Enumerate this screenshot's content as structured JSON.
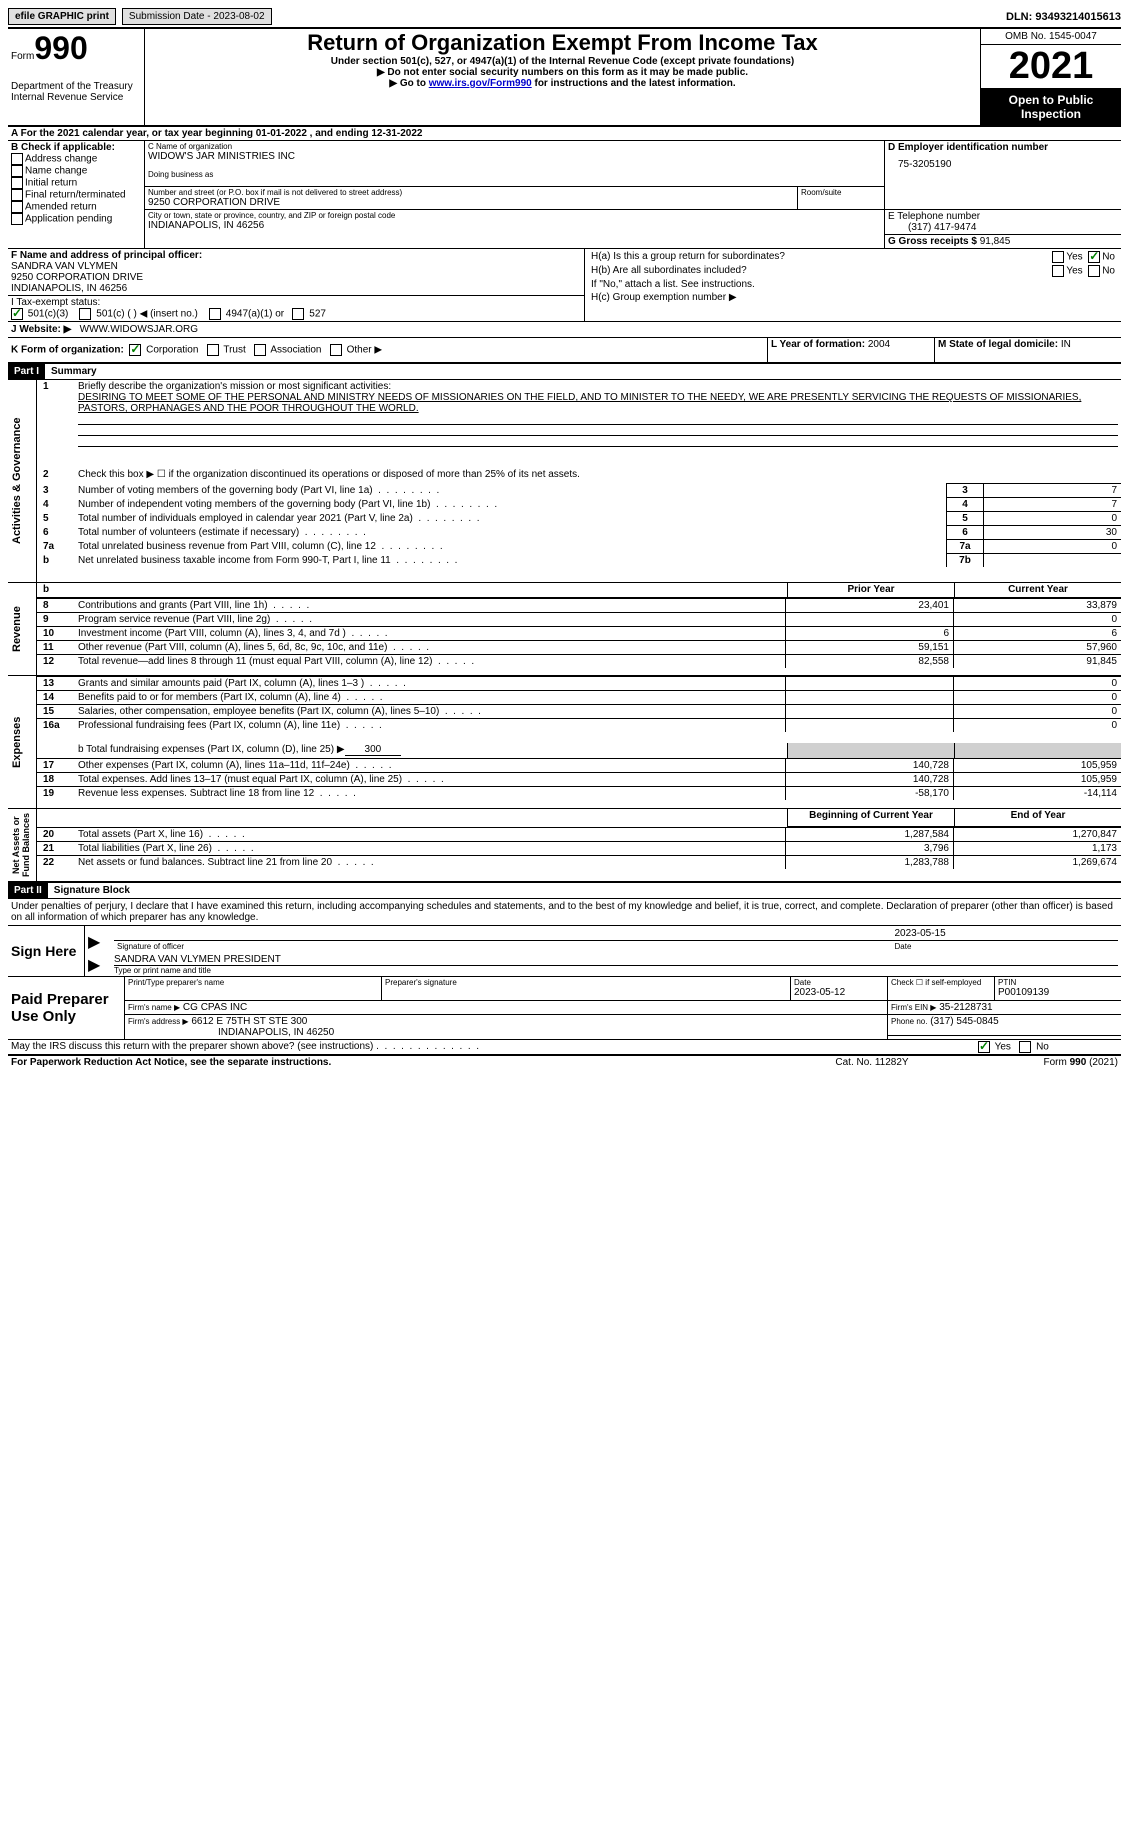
{
  "topbar": {
    "efile": "efile GRAPHIC print",
    "submission": "Submission Date - 2023-08-02",
    "dln": "DLN: 93493214015613"
  },
  "header": {
    "form_word": "Form",
    "form_num": "990",
    "title": "Return of Organization Exempt From Income Tax",
    "subtitle1": "Under section 501(c), 527, or 4947(a)(1) of the Internal Revenue Code (except private foundations)",
    "subtitle2": "▶ Do not enter social security numbers on this form as it may be made public.",
    "subtitle3_pre": "▶ Go to ",
    "subtitle3_link": "www.irs.gov/Form990",
    "subtitle3_post": " for instructions and the latest information.",
    "dept": "Department of the Treasury",
    "irs": "Internal Revenue Service",
    "omb": "OMB No. 1545-0047",
    "year": "2021",
    "open": "Open to Public Inspection"
  },
  "line_a": {
    "text_pre": "A For the 2021 calendar year, or tax year beginning ",
    "begin": "01-01-2022",
    "mid": "   , and ending ",
    "end": "12-31-2022"
  },
  "section_b": {
    "label": "B Check if applicable:",
    "opts": [
      "Address change",
      "Name change",
      "Initial return",
      "Final return/terminated",
      "Amended return",
      "Application pending"
    ]
  },
  "section_c": {
    "name_label": "C Name of organization",
    "name": "WIDOW'S JAR MINISTRIES INC",
    "dba_label": "Doing business as",
    "addr_label": "Number and street (or P.O. box if mail is not delivered to street address)",
    "room_label": "Room/suite",
    "addr": "9250 CORPORATION DRIVE",
    "city_label": "City or town, state or province, country, and ZIP or foreign postal code",
    "city": "INDIANAPOLIS, IN  46256"
  },
  "section_d": {
    "label": "D Employer identification number",
    "value": "75-3205190"
  },
  "section_e": {
    "label": "E Telephone number",
    "value": "(317) 417-9474"
  },
  "section_g": {
    "label": "G Gross receipts $",
    "value": "91,845"
  },
  "section_f": {
    "label": "F Name and address of principal officer:",
    "name": "SANDRA VAN VLYMEN",
    "addr1": "9250 CORPORATION DRIVE",
    "addr2": "INDIANAPOLIS, IN  46256"
  },
  "section_h": {
    "ha": "H(a)  Is this a group return for subordinates?",
    "hb": "H(b)  Are all subordinates included?",
    "hb_note": "If \"No,\" attach a list. See instructions.",
    "hc": "H(c)  Group exemption number ▶",
    "yes": "Yes",
    "no": "No"
  },
  "section_i": {
    "label": "I    Tax-exempt status:",
    "o1": "501(c)(3)",
    "o2": "501(c) (  ) ◀ (insert no.)",
    "o3": "4947(a)(1) or",
    "o4": "527"
  },
  "section_j": {
    "label": "J    Website: ▶",
    "value": "WWW.WIDOWSJAR.ORG"
  },
  "section_k": {
    "label": "K Form of organization:",
    "o1": "Corporation",
    "o2": "Trust",
    "o3": "Association",
    "o4": "Other ▶"
  },
  "section_l": {
    "label": "L Year of formation:",
    "value": "2004"
  },
  "section_m": {
    "label": "M State of legal domicile:",
    "value": "IN"
  },
  "part1": {
    "num": "Part I",
    "title": "Summary",
    "q1_label": "1",
    "q1_text": "Briefly describe the organization's mission or most significant activities:",
    "q1_body": "DESIRING TO MEET SOME OF THE PERSONAL AND MINISTRY NEEDS OF MISSIONARIES ON THE FIELD, AND TO MINISTER TO THE NEEDY, WE ARE PRESENTLY SERVICING THE REQUESTS OF MISSIONARIES, PASTORS, ORPHANAGES AND THE POOR THROUGHOUT THE WORLD.",
    "q2": "Check this box ▶ ☐  if the organization discontinued its operations or disposed of more than 25% of its net assets.",
    "rows_gov": [
      {
        "n": "3",
        "t": "Number of voting members of the governing body (Part VI, line 1a)",
        "box": "3",
        "v": "7"
      },
      {
        "n": "4",
        "t": "Number of independent voting members of the governing body (Part VI, line 1b)",
        "box": "4",
        "v": "7"
      },
      {
        "n": "5",
        "t": "Total number of individuals employed in calendar year 2021 (Part V, line 2a)",
        "box": "5",
        "v": "0"
      },
      {
        "n": "6",
        "t": "Total number of volunteers (estimate if necessary)",
        "box": "6",
        "v": "30"
      },
      {
        "n": "7a",
        "t": "Total unrelated business revenue from Part VIII, column (C), line 12",
        "box": "7a",
        "v": "0"
      },
      {
        "n": "b",
        "t": "Net unrelated business taxable income from Form 990-T, Part I, line 11",
        "box": "7b",
        "v": ""
      }
    ],
    "col_prior": "Prior Year",
    "col_current": "Current Year",
    "revenue": [
      {
        "n": "8",
        "t": "Contributions and grants (Part VIII, line 1h)",
        "p": "23,401",
        "c": "33,879"
      },
      {
        "n": "9",
        "t": "Program service revenue (Part VIII, line 2g)",
        "p": "",
        "c": "0"
      },
      {
        "n": "10",
        "t": "Investment income (Part VIII, column (A), lines 3, 4, and 7d )",
        "p": "6",
        "c": "6"
      },
      {
        "n": "11",
        "t": "Other revenue (Part VIII, column (A), lines 5, 6d, 8c, 9c, 10c, and 11e)",
        "p": "59,151",
        "c": "57,960"
      },
      {
        "n": "12",
        "t": "Total revenue—add lines 8 through 11 (must equal Part VIII, column (A), line 12)",
        "p": "82,558",
        "c": "91,845"
      }
    ],
    "expenses": [
      {
        "n": "13",
        "t": "Grants and similar amounts paid (Part IX, column (A), lines 1–3 )",
        "p": "",
        "c": "0"
      },
      {
        "n": "14",
        "t": "Benefits paid to or for members (Part IX, column (A), line 4)",
        "p": "",
        "c": "0"
      },
      {
        "n": "15",
        "t": "Salaries, other compensation, employee benefits (Part IX, column (A), lines 5–10)",
        "p": "",
        "c": "0"
      },
      {
        "n": "16a",
        "t": "Professional fundraising fees (Part IX, column (A), line 11e)",
        "p": "",
        "c": "0"
      }
    ],
    "line_b": "b  Total fundraising expenses (Part IX, column (D), line 25) ▶",
    "line_b_val": "300",
    "expenses2": [
      {
        "n": "17",
        "t": "Other expenses (Part IX, column (A), lines 11a–11d, 11f–24e)",
        "p": "140,728",
        "c": "105,959"
      },
      {
        "n": "18",
        "t": "Total expenses. Add lines 13–17 (must equal Part IX, column (A), line 25)",
        "p": "140,728",
        "c": "105,959"
      },
      {
        "n": "19",
        "t": "Revenue less expenses. Subtract line 18 from line 12",
        "p": "-58,170",
        "c": "-14,114"
      }
    ],
    "col_begin": "Beginning of Current Year",
    "col_end": "End of Year",
    "net": [
      {
        "n": "20",
        "t": "Total assets (Part X, line 16)",
        "p": "1,287,584",
        "c": "1,270,847"
      },
      {
        "n": "21",
        "t": "Total liabilities (Part X, line 26)",
        "p": "3,796",
        "c": "1,173"
      },
      {
        "n": "22",
        "t": "Net assets or fund balances. Subtract line 21 from line 20",
        "p": "1,283,788",
        "c": "1,269,674"
      }
    ],
    "vlabels": {
      "gov": "Activities & Governance",
      "rev": "Revenue",
      "exp": "Expenses",
      "net": "Net Assets or Fund Balances"
    }
  },
  "part2": {
    "num": "Part II",
    "title": "Signature Block",
    "perjury": "Under penalties of perjury, I declare that I have examined this return, including accompanying schedules and statements, and to the best of my knowledge and belief, it is true, correct, and complete. Declaration of preparer (other than officer) is based on all information of which preparer has any knowledge.",
    "sign_here": "Sign Here",
    "sig_officer": "Signature of officer",
    "sig_date": "2023-05-15",
    "date_label": "Date",
    "typed_name": "SANDRA VAN VLYMEN  PRESIDENT",
    "typed_label": "Type or print name and title",
    "paid": "Paid Preparer Use Only",
    "print_name_label": "Print/Type preparer's name",
    "prep_sig_label": "Preparer's signature",
    "prep_date_label": "Date",
    "prep_date": "2023-05-12",
    "check_if": "Check ☐ if self-employed",
    "ptin_label": "PTIN",
    "ptin": "P00109139",
    "firm_name_label": "Firm's name    ▶",
    "firm_name": "CG CPAS INC",
    "firm_ein_label": "Firm's EIN ▶",
    "firm_ein": "35-2128731",
    "firm_addr_label": "Firm's address ▶",
    "firm_addr1": "6612 E 75TH ST STE 300",
    "firm_addr2": "INDIANAPOLIS, IN  46250",
    "firm_phone_label": "Phone no.",
    "firm_phone": "(317) 545-0845",
    "discuss": "May the IRS discuss this return with the preparer shown above? (see instructions)",
    "yes": "Yes",
    "no": "No"
  },
  "footer": {
    "paperwork": "For Paperwork Reduction Act Notice, see the separate instructions.",
    "cat": "Cat. No. 11282Y",
    "form": "Form 990 (2021)"
  }
}
